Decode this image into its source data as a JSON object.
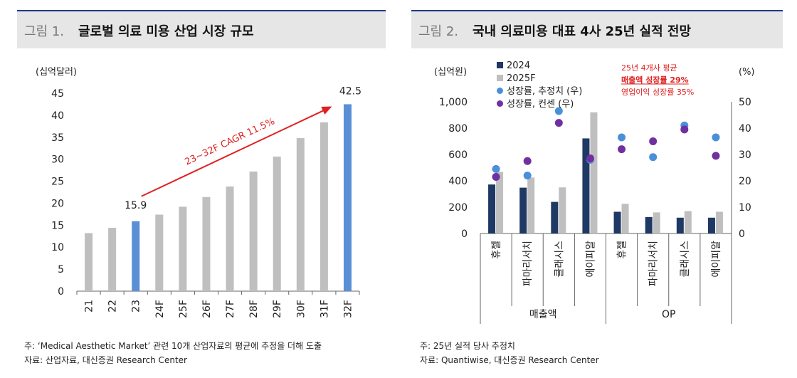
{
  "figure1": {
    "label": "그림 1.",
    "title": "글로벌 의료 미용 산업 시장 규모",
    "footnote": "주: ‘Medical Aesthetic Market’ 관련 10개 산업자료의 평균에 추정을 더해 도출",
    "source": "자료: 산업자료, 대신증권 Research Center"
  },
  "figure2": {
    "label": "그림 2.",
    "title": "국내 의료미용 대표 4사 25년 실적 전망",
    "footnote": "주: 25년 실적 당사 추정치",
    "source": "자료: Quantiwise, 대신증권 Research Center"
  },
  "chart_data": [
    {
      "type": "bar",
      "unit_label": "(십억달러)",
      "categories": [
        "21",
        "22",
        "23",
        "24F",
        "25F",
        "26F",
        "27F",
        "28F",
        "29F",
        "30F",
        "31F",
        "32F"
      ],
      "values": [
        13.2,
        14.4,
        15.9,
        17.4,
        19.2,
        21.4,
        23.8,
        27.2,
        30.6,
        34.8,
        38.4,
        42.5
      ],
      "highlight": [
        "23",
        "32F"
      ],
      "data_labels": {
        "23": "15.9",
        "32F": "42.5"
      },
      "annotation": "23~32F CAGR 11.5%",
      "ylim": [
        0,
        45
      ],
      "yticks": [
        "0",
        "5",
        "10",
        "15",
        "20",
        "25",
        "30",
        "35",
        "40",
        "45"
      ],
      "colors": {
        "bar": "#bfbfbf",
        "highlight": "#5a8fd6",
        "arrow": "#e02020"
      }
    },
    {
      "type": "bar",
      "left_unit": "(십억원)",
      "right_unit": "(%)",
      "categories": [
        "휴젤",
        "파마리서치",
        "클래시스",
        "에이피알",
        "휴젤",
        "파마리서치",
        "클래시스",
        "에이피알"
      ],
      "groups": [
        {
          "label": "매출액",
          "count": 4
        },
        {
          "label": "OP",
          "count": 4
        }
      ],
      "series": [
        {
          "name": "2024",
          "axis": "left",
          "values": [
            372,
            348,
            240,
            722,
            165,
            125,
            120,
            120
          ]
        },
        {
          "name": "2025F",
          "axis": "left",
          "values": [
            468,
            425,
            350,
            920,
            225,
            160,
            170,
            165
          ]
        },
        {
          "name": "성장률, 추정치 (우)",
          "axis": "right",
          "values": [
            24.5,
            22.0,
            46.5,
            28.0,
            36.5,
            29.0,
            41.0,
            36.5
          ]
        },
        {
          "name": "성장률, 컨센 (우)",
          "axis": "right",
          "values": [
            21.5,
            27.5,
            42.0,
            28.5,
            32.0,
            35.0,
            39.5,
            29.5
          ]
        }
      ],
      "ylim_left": [
        0,
        1000
      ],
      "ylim_right": [
        0,
        50
      ],
      "yticks_left": [
        "0",
        "200",
        "400",
        "600",
        "800",
        "1,000"
      ],
      "yticks_right": [
        "0",
        "10",
        "20",
        "30",
        "40",
        "50"
      ],
      "annotation_lines": [
        "25년 4개사 평균",
        "매출액 성장률 29%",
        "영업이익 성장률 35%"
      ],
      "colors": {
        "s2024": "#1f3864",
        "s2025": "#bfbfbf",
        "est": "#4a90d9",
        "cons": "#7030a0",
        "note": "#e02020"
      }
    }
  ]
}
